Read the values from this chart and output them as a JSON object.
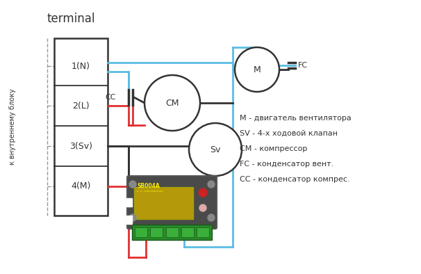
{
  "title": "terminal",
  "side_label": "к внутреннему блоку",
  "terminals": [
    "1(N)",
    "2(L)",
    "3(Sv)",
    "4(M)"
  ],
  "legend": [
    "М - двигатель вентилятора",
    "SV - 4-х ходовой клапан",
    "СМ - компрессор",
    "FC - конденсатор вент.",
    "СС - конденсатор компрес."
  ],
  "blue": "#5bbde4",
  "red": "#e03030",
  "dark": "#333333",
  "gray": "#999999",
  "bg": "#ffffff",
  "board_dark": "#4a4a4a",
  "board_green": "#2a8a2a",
  "board_yellow": "#c8a800"
}
